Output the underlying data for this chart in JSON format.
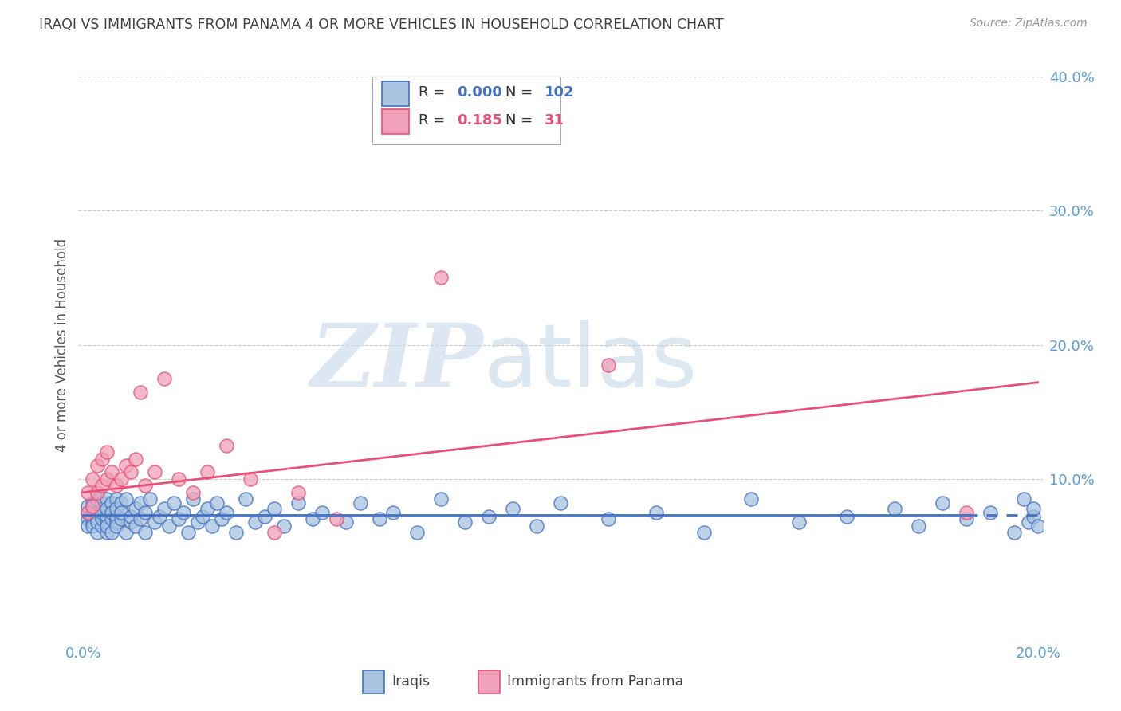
{
  "title": "IRAQI VS IMMIGRANTS FROM PANAMA 4 OR MORE VEHICLES IN HOUSEHOLD CORRELATION CHART",
  "source": "Source: ZipAtlas.com",
  "ylabel": "4 or more Vehicles in Household",
  "legend_label1": "Iraqis",
  "legend_label2": "Immigrants from Panama",
  "R1": 0.0,
  "N1": 102,
  "R2": 0.185,
  "N2": 31,
  "xlim": [
    -0.001,
    0.201
  ],
  "ylim": [
    -0.02,
    0.42
  ],
  "xticks": [
    0.0,
    0.2
  ],
  "yticks": [
    0.1,
    0.2,
    0.3,
    0.4
  ],
  "color_iraqis_fill": "#a8c4e0",
  "color_iraqis_edge": "#4472c4",
  "color_panama_fill": "#f0a0b8",
  "color_panama_edge": "#e8507a",
  "color_iraqis_line": "#4472c4",
  "color_panama_line": "#e8507a",
  "color_axis_labels": "#5b9bd5",
  "color_title": "#404040",
  "background_color": "#ffffff",
  "watermark_zip": "ZIP",
  "watermark_atlas": "atlas",
  "iraqis_x": [
    0.001,
    0.001,
    0.001,
    0.001,
    0.002,
    0.002,
    0.002,
    0.002,
    0.002,
    0.003,
    0.003,
    0.003,
    0.003,
    0.003,
    0.004,
    0.004,
    0.004,
    0.004,
    0.004,
    0.004,
    0.005,
    0.005,
    0.005,
    0.005,
    0.005,
    0.005,
    0.006,
    0.006,
    0.006,
    0.006,
    0.007,
    0.007,
    0.007,
    0.007,
    0.007,
    0.008,
    0.008,
    0.008,
    0.009,
    0.009,
    0.01,
    0.01,
    0.011,
    0.011,
    0.012,
    0.012,
    0.013,
    0.013,
    0.014,
    0.015,
    0.016,
    0.017,
    0.018,
    0.019,
    0.02,
    0.021,
    0.022,
    0.023,
    0.024,
    0.025,
    0.026,
    0.027,
    0.028,
    0.029,
    0.03,
    0.032,
    0.034,
    0.036,
    0.038,
    0.04,
    0.042,
    0.045,
    0.048,
    0.05,
    0.055,
    0.058,
    0.062,
    0.065,
    0.07,
    0.075,
    0.08,
    0.085,
    0.09,
    0.095,
    0.1,
    0.11,
    0.12,
    0.13,
    0.14,
    0.15,
    0.16,
    0.17,
    0.175,
    0.18,
    0.185,
    0.19,
    0.195,
    0.197,
    0.198,
    0.199,
    0.199,
    0.2
  ],
  "iraqis_y": [
    0.07,
    0.075,
    0.065,
    0.08,
    0.068,
    0.072,
    0.078,
    0.065,
    0.082,
    0.07,
    0.075,
    0.06,
    0.085,
    0.068,
    0.072,
    0.078,
    0.065,
    0.082,
    0.07,
    0.075,
    0.06,
    0.085,
    0.068,
    0.072,
    0.078,
    0.065,
    0.082,
    0.07,
    0.075,
    0.06,
    0.085,
    0.068,
    0.072,
    0.078,
    0.065,
    0.082,
    0.07,
    0.075,
    0.06,
    0.085,
    0.068,
    0.072,
    0.078,
    0.065,
    0.082,
    0.07,
    0.075,
    0.06,
    0.085,
    0.068,
    0.072,
    0.078,
    0.065,
    0.082,
    0.07,
    0.075,
    0.06,
    0.085,
    0.068,
    0.072,
    0.078,
    0.065,
    0.082,
    0.07,
    0.075,
    0.06,
    0.085,
    0.068,
    0.072,
    0.078,
    0.065,
    0.082,
    0.07,
    0.075,
    0.068,
    0.082,
    0.07,
    0.075,
    0.06,
    0.085,
    0.068,
    0.072,
    0.078,
    0.065,
    0.082,
    0.07,
    0.075,
    0.06,
    0.085,
    0.068,
    0.072,
    0.078,
    0.065,
    0.082,
    0.07,
    0.075,
    0.06,
    0.085,
    0.068,
    0.072,
    0.078,
    0.065
  ],
  "panama_x": [
    0.001,
    0.001,
    0.002,
    0.002,
    0.003,
    0.003,
    0.004,
    0.004,
    0.005,
    0.005,
    0.006,
    0.007,
    0.008,
    0.009,
    0.01,
    0.011,
    0.012,
    0.013,
    0.015,
    0.017,
    0.02,
    0.023,
    0.026,
    0.03,
    0.035,
    0.04,
    0.045,
    0.053,
    0.075,
    0.11,
    0.185
  ],
  "panama_y": [
    0.075,
    0.09,
    0.08,
    0.1,
    0.09,
    0.11,
    0.095,
    0.115,
    0.1,
    0.12,
    0.105,
    0.095,
    0.1,
    0.11,
    0.105,
    0.115,
    0.165,
    0.095,
    0.105,
    0.175,
    0.1,
    0.09,
    0.105,
    0.125,
    0.1,
    0.06,
    0.09,
    0.07,
    0.25,
    0.185,
    0.075
  ],
  "iraqis_line_y": 0.073,
  "panama_line_x0": 0.0,
  "panama_line_y0": 0.09,
  "panama_line_x1": 0.2,
  "panama_line_y1": 0.172
}
